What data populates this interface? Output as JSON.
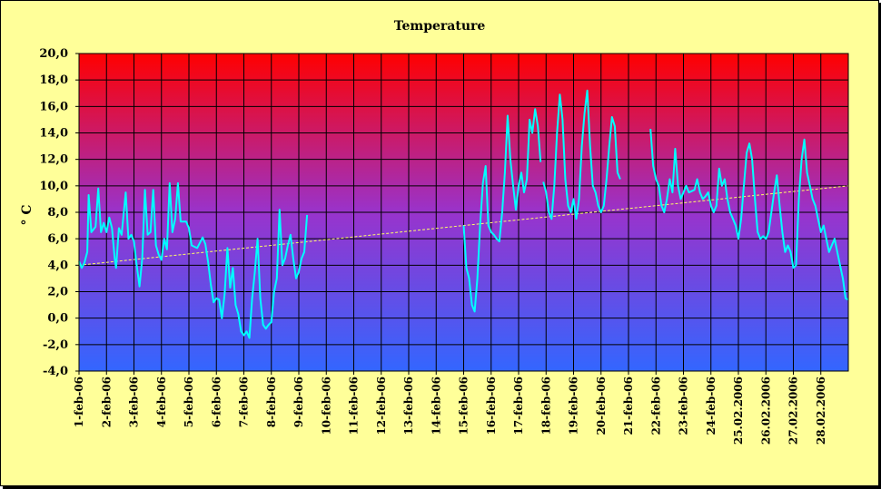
{
  "chart_data": {
    "type": "line",
    "title": "Temperature",
    "ylabel": "° C",
    "xlabel": "",
    "ylim": [
      -4,
      20
    ],
    "yticks": [
      -4,
      -2,
      0,
      2,
      4,
      6,
      8,
      10,
      12,
      14,
      16,
      18,
      20
    ],
    "ytick_labels": [
      "-4,0",
      "-2,0",
      "0,0",
      "2,0",
      "4,0",
      "6,0",
      "8,0",
      "10,0",
      "12,0",
      "14,0",
      "16,0",
      "18,0",
      "20,0"
    ],
    "categories": [
      "1-feb-06",
      "2-feb-06",
      "3-feb-06",
      "4-feb-06",
      "5-feb-06",
      "6-feb-06",
      "7-feb-06",
      "8-feb-06",
      "9-feb-06",
      "10-feb-06",
      "11-feb-06",
      "12-feb-06",
      "13-feb-06",
      "14-feb-06",
      "15-feb-06",
      "16-feb-06",
      "17-feb-06",
      "18-feb-06",
      "19-feb-06",
      "20-feb-06",
      "21-feb-06",
      "22-feb-06",
      "23-feb-06",
      "24-feb-06",
      "25.02.2006",
      "26.02.2006",
      "27.02.2006",
      "28.02.2006"
    ],
    "grid": true,
    "background_gradient": [
      "#ff0000",
      "#9933cc",
      "#3366ff"
    ],
    "series": [
      {
        "color": "#00ffff",
        "segments": [
          [
            [
              0.0,
              4.3
            ],
            [
              0.1,
              3.8
            ],
            [
              0.2,
              4.2
            ],
            [
              0.3,
              5.0
            ],
            [
              0.35,
              9.3
            ],
            [
              0.45,
              6.5
            ],
            [
              0.6,
              6.9
            ],
            [
              0.7,
              9.8
            ],
            [
              0.8,
              6.5
            ],
            [
              0.9,
              7.2
            ],
            [
              1.0,
              6.5
            ],
            [
              1.1,
              7.6
            ],
            [
              1.2,
              6.8
            ],
            [
              1.3,
              4.5
            ],
            [
              1.35,
              3.8
            ],
            [
              1.45,
              6.8
            ],
            [
              1.55,
              6.3
            ],
            [
              1.7,
              9.5
            ],
            [
              1.8,
              6.0
            ],
            [
              1.9,
              6.3
            ],
            [
              2.0,
              5.8
            ],
            [
              2.1,
              4.0
            ],
            [
              2.2,
              2.4
            ],
            [
              2.3,
              4.5
            ],
            [
              2.4,
              9.7
            ],
            [
              2.5,
              6.3
            ],
            [
              2.6,
              6.5
            ],
            [
              2.7,
              9.7
            ],
            [
              2.8,
              5.5
            ],
            [
              2.9,
              4.8
            ],
            [
              3.0,
              4.4
            ],
            [
              3.1,
              6.0
            ],
            [
              3.2,
              5.2
            ],
            [
              3.3,
              10.2
            ],
            [
              3.4,
              6.5
            ],
            [
              3.5,
              7.5
            ],
            [
              3.6,
              10.2
            ],
            [
              3.7,
              7.3
            ],
            [
              3.8,
              7.3
            ],
            [
              3.9,
              7.3
            ],
            [
              4.0,
              6.8
            ],
            [
              4.1,
              5.5
            ],
            [
              4.3,
              5.3
            ],
            [
              4.5,
              6.1
            ],
            [
              4.6,
              5.6
            ],
            [
              4.7,
              4.2
            ],
            [
              4.8,
              2.5
            ],
            [
              4.9,
              1.2
            ],
            [
              5.0,
              1.5
            ],
            [
              5.1,
              1.4
            ],
            [
              5.2,
              0.0
            ],
            [
              5.3,
              1.8
            ],
            [
              5.4,
              5.3
            ],
            [
              5.5,
              2.3
            ],
            [
              5.6,
              3.8
            ],
            [
              5.7,
              1.0
            ],
            [
              5.8,
              0.3
            ],
            [
              5.9,
              -1.0
            ],
            [
              6.0,
              -1.3
            ],
            [
              6.1,
              -1.0
            ],
            [
              6.2,
              -1.5
            ],
            [
              6.3,
              1.5
            ],
            [
              6.4,
              3.5
            ],
            [
              6.5,
              6.0
            ],
            [
              6.6,
              1.5
            ],
            [
              6.7,
              -0.5
            ],
            [
              6.8,
              -0.8
            ],
            [
              6.9,
              -0.5
            ],
            [
              7.0,
              -0.3
            ],
            [
              7.1,
              2.0
            ],
            [
              7.2,
              3.0
            ],
            [
              7.3,
              8.2
            ],
            [
              7.4,
              4.0
            ],
            [
              7.5,
              4.5
            ],
            [
              7.6,
              5.5
            ],
            [
              7.7,
              6.3
            ],
            [
              7.8,
              4.5
            ],
            [
              7.9,
              3.0
            ],
            [
              8.0,
              3.5
            ],
            [
              8.1,
              4.5
            ],
            [
              8.2,
              5.0
            ],
            [
              8.3,
              7.8
            ]
          ],
          [
            [
              14.0,
              7.0
            ],
            [
              14.1,
              3.8
            ],
            [
              14.2,
              3.0
            ],
            [
              14.3,
              1.0
            ],
            [
              14.4,
              0.5
            ],
            [
              14.5,
              3.0
            ],
            [
              14.6,
              7.0
            ],
            [
              14.7,
              10.2
            ],
            [
              14.8,
              11.5
            ],
            [
              14.9,
              7.0
            ],
            [
              15.0,
              6.5
            ],
            [
              15.1,
              6.3
            ],
            [
              15.2,
              6.0
            ],
            [
              15.3,
              5.8
            ],
            [
              15.4,
              8.0
            ],
            [
              15.5,
              11.0
            ],
            [
              15.6,
              15.3
            ],
            [
              15.7,
              12.0
            ],
            [
              15.8,
              10.0
            ],
            [
              15.9,
              8.2
            ],
            [
              16.0,
              10.0
            ],
            [
              16.1,
              11.0
            ],
            [
              16.2,
              9.5
            ],
            [
              16.3,
              10.5
            ],
            [
              16.4,
              15.0
            ],
            [
              16.5,
              14.0
            ],
            [
              16.6,
              15.8
            ],
            [
              16.7,
              14.5
            ],
            [
              16.8,
              11.8
            ]
          ],
          [
            [
              16.9,
              10.3
            ],
            [
              17.0,
              9.5
            ],
            [
              17.1,
              8.0
            ],
            [
              17.2,
              7.5
            ],
            [
              17.3,
              10.0
            ],
            [
              17.4,
              14.0
            ],
            [
              17.5,
              16.9
            ],
            [
              17.6,
              15.0
            ],
            [
              17.7,
              10.5
            ],
            [
              17.8,
              8.5
            ],
            [
              17.9,
              8.0
            ],
            [
              18.0,
              9.0
            ],
            [
              18.1,
              7.5
            ],
            [
              18.2,
              9.0
            ],
            [
              18.3,
              13.0
            ],
            [
              18.4,
              15.5
            ],
            [
              18.5,
              17.2
            ],
            [
              18.6,
              13.0
            ],
            [
              18.7,
              10.0
            ],
            [
              18.8,
              9.5
            ],
            [
              18.9,
              8.5
            ],
            [
              19.0,
              8.0
            ],
            [
              19.1,
              8.5
            ],
            [
              19.2,
              10.5
            ],
            [
              19.3,
              13.0
            ],
            [
              19.4,
              15.2
            ],
            [
              19.5,
              14.5
            ],
            [
              19.6,
              11.0
            ],
            [
              19.7,
              10.5
            ]
          ],
          [
            [
              20.8,
              14.3
            ],
            [
              20.9,
              11.5
            ],
            [
              21.0,
              10.5
            ],
            [
              21.1,
              10.0
            ],
            [
              21.2,
              8.5
            ],
            [
              21.3,
              8.0
            ],
            [
              21.4,
              9.0
            ],
            [
              21.5,
              10.5
            ],
            [
              21.6,
              9.5
            ],
            [
              21.7,
              12.8
            ],
            [
              21.8,
              10.0
            ],
            [
              21.9,
              9.0
            ],
            [
              22.0,
              9.5
            ],
            [
              22.1,
              10.0
            ],
            [
              22.2,
              9.5
            ],
            [
              22.3,
              9.6
            ],
            [
              22.4,
              9.7
            ],
            [
              22.5,
              10.5
            ],
            [
              22.6,
              9.5
            ],
            [
              22.7,
              9.0
            ],
            [
              22.8,
              9.2
            ],
            [
              22.9,
              9.5
            ],
            [
              23.0,
              8.5
            ],
            [
              23.1,
              8.0
            ],
            [
              23.2,
              8.5
            ],
            [
              23.3,
              11.3
            ],
            [
              23.4,
              10.0
            ],
            [
              23.5,
              10.5
            ],
            [
              23.6,
              9.0
            ],
            [
              23.7,
              8.0
            ],
            [
              23.8,
              7.5
            ],
            [
              23.9,
              7.0
            ],
            [
              24.0,
              6.0
            ],
            [
              24.1,
              7.5
            ],
            [
              24.2,
              10.0
            ],
            [
              24.3,
              12.5
            ],
            [
              24.4,
              13.2
            ],
            [
              24.5,
              12.0
            ],
            [
              24.6,
              9.0
            ],
            [
              24.7,
              6.5
            ],
            [
              24.8,
              6.0
            ],
            [
              24.9,
              6.2
            ],
            [
              25.0,
              6.0
            ],
            [
              25.1,
              6.5
            ],
            [
              25.2,
              8.0
            ],
            [
              25.3,
              9.5
            ],
            [
              25.4,
              10.8
            ],
            [
              25.5,
              8.5
            ],
            [
              25.6,
              6.5
            ],
            [
              25.7,
              5.0
            ],
            [
              25.8,
              5.5
            ],
            [
              25.9,
              5.0
            ],
            [
              26.0,
              3.8
            ],
            [
              26.1,
              4.0
            ],
            [
              26.2,
              9.0
            ],
            [
              26.3,
              12.0
            ],
            [
              26.4,
              13.5
            ],
            [
              26.5,
              11.0
            ],
            [
              26.6,
              10.0
            ],
            [
              26.7,
              9.0
            ],
            [
              26.8,
              8.5
            ],
            [
              26.9,
              7.5
            ],
            [
              27.0,
              6.5
            ],
            [
              27.1,
              7.0
            ],
            [
              27.2,
              6.0
            ],
            [
              27.3,
              5.0
            ],
            [
              27.4,
              5.5
            ],
            [
              27.5,
              6.0
            ],
            [
              27.6,
              5.0
            ],
            [
              27.7,
              4.0
            ],
            [
              27.8,
              3.0
            ],
            [
              27.9,
              1.5
            ],
            [
              28.0,
              1.4
            ]
          ]
        ]
      }
    ],
    "trendline": {
      "color": "#ffff66",
      "style": "dashed",
      "from": [
        0.0,
        4.0
      ],
      "to": [
        28.0,
        10.0
      ]
    }
  }
}
